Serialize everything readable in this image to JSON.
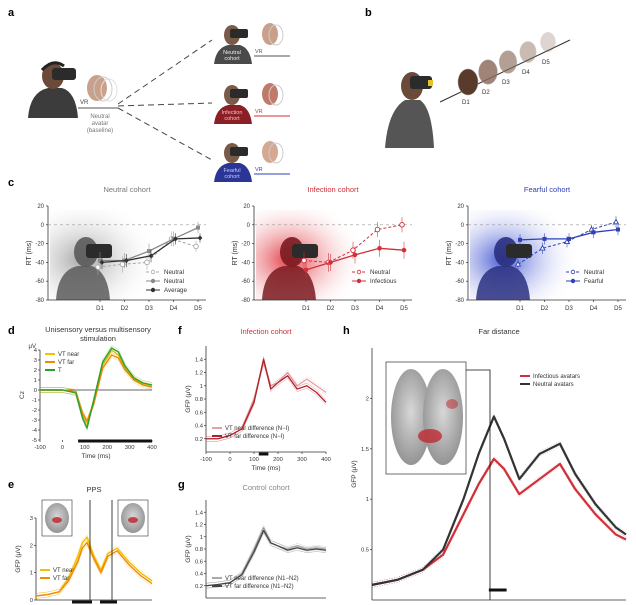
{
  "panels": {
    "a": {
      "letter": "a",
      "vr_main": "VR",
      "baseline_text": [
        "Neutral",
        "avatar",
        "(baseline)"
      ],
      "cohorts": [
        {
          "label": [
            "Neutral",
            "cohort"
          ],
          "vr": "VR",
          "color": "#555555",
          "shirt": "#4a4a4a"
        },
        {
          "label": [
            "Infection",
            "cohort"
          ],
          "vr": "VR",
          "color": "#d0303a",
          "shirt": "#8b1f25"
        },
        {
          "label": [
            "Fearful",
            "cohort"
          ],
          "vr": "VR",
          "color": "#2f3fb8",
          "shirt": "#2a3596"
        }
      ]
    },
    "b": {
      "letter": "b",
      "distances": [
        "D1",
        "D2",
        "D3",
        "D4",
        "D5"
      ]
    },
    "c": {
      "letter": "c"
    },
    "d": {
      "letter": "d"
    },
    "e": {
      "letter": "e"
    },
    "f": {
      "letter": "f"
    },
    "g": {
      "letter": "g"
    },
    "h": {
      "letter": "h"
    }
  },
  "chart_data": [
    {
      "id": "c1",
      "type": "line",
      "title": "Neutral cohort",
      "title_color": "#777777",
      "ylabel": "RT (ms)",
      "ylim": [
        -80,
        20
      ],
      "yticks": [
        20,
        0,
        -20,
        -40,
        -60,
        -80
      ],
      "categories": [
        "D1",
        "D2",
        "D3",
        "D4",
        "D5"
      ],
      "legend": "bottom-right",
      "series": [
        {
          "name": "Neutral",
          "color": "#aaaaaa",
          "marker": "open-circle",
          "dashed": true,
          "values": [
            -45,
            -42,
            -40,
            -15,
            -23
          ],
          "err": [
            8,
            9,
            8,
            8,
            6
          ]
        },
        {
          "name": "Neutral",
          "color": "#8a8a8a",
          "marker": "square",
          "dashed": false,
          "values": [
            -38,
            -38,
            -28,
            -15,
            -3
          ],
          "err": [
            9,
            8,
            8,
            8,
            6
          ]
        },
        {
          "name": "Average",
          "color": "#333333",
          "marker": "diamond",
          "dashed": false,
          "values": [
            -40,
            -38,
            -33,
            -15,
            -14
          ],
          "err": [
            7,
            7,
            7,
            6,
            5
          ]
        }
      ]
    },
    {
      "id": "c2",
      "type": "line",
      "title": "Infection cohort",
      "title_color": "#d0303a",
      "ylabel": "RT (ms)",
      "ylim": [
        -80,
        20
      ],
      "yticks": [
        20,
        0,
        -20,
        -40,
        -60,
        -80
      ],
      "categories": [
        "D1",
        "D2",
        "D3",
        "D4",
        "D5"
      ],
      "legend": "bottom-right",
      "series": [
        {
          "name": "Neutral",
          "color": "#d0303a",
          "marker": "open-circle",
          "dashed": true,
          "values": [
            -38,
            -40,
            -27,
            -5,
            0
          ],
          "err": [
            9,
            10,
            9,
            8,
            8
          ]
        },
        {
          "name": "Infectious",
          "color": "#d0303a",
          "marker": "filled-circle",
          "dashed": false,
          "values": [
            -48,
            -40,
            -32,
            -25,
            -27
          ],
          "err": [
            9,
            9,
            9,
            9,
            9
          ]
        }
      ]
    },
    {
      "id": "c3",
      "type": "line",
      "title": "Fearful cohort",
      "title_color": "#2f3fb8",
      "ylabel": "RT (ms)",
      "ylim": [
        -80,
        20
      ],
      "yticks": [
        20,
        0,
        -20,
        -40,
        -60,
        -80
      ],
      "categories": [
        "D1",
        "D2",
        "D3",
        "D4",
        "D5"
      ],
      "legend": "bottom-right",
      "series": [
        {
          "name": "Neutral",
          "color": "#2f3fb8",
          "marker": "open-triangle",
          "dashed": true,
          "values": [
            -42,
            -25,
            -18,
            -5,
            3
          ],
          "err": [
            6,
            6,
            6,
            5,
            6
          ]
        },
        {
          "name": "Fearful",
          "color": "#2f3fb8",
          "marker": "filled-square",
          "dashed": false,
          "values": [
            -16,
            -15,
            -15,
            -8,
            -5
          ],
          "err": [
            6,
            6,
            6,
            6,
            6
          ]
        }
      ]
    },
    {
      "id": "d",
      "type": "line",
      "title": "Unisensory versus multisensory stimulation",
      "ylabel": "Cz",
      "yunit": "μV",
      "xlabel": "Time (ms)",
      "xlim": [
        -100,
        400
      ],
      "ylim": [
        -5,
        4
      ],
      "xticks": [
        -100,
        0,
        100,
        200,
        300,
        400
      ],
      "yticks": [
        4,
        3,
        2,
        1,
        0,
        -1,
        -2,
        -3,
        -4,
        -5
      ],
      "legend": "top-left",
      "sig_bar": [
        70,
        400
      ],
      "series": [
        {
          "name": "VT near",
          "color": "#f2c200",
          "x": [
            -100,
            0,
            60,
            90,
            110,
            140,
            180,
            220,
            250,
            280,
            320,
            360,
            400
          ],
          "values": [
            0,
            0,
            -0.2,
            -2.5,
            -3.3,
            -1.2,
            2.5,
            4.0,
            3.5,
            2.2,
            1.1,
            0.6,
            0.4
          ]
        },
        {
          "name": "VT far",
          "color": "#f08a00",
          "x": [
            -100,
            0,
            60,
            90,
            110,
            140,
            180,
            220,
            250,
            280,
            320,
            360,
            400
          ],
          "values": [
            0,
            0,
            -0.2,
            -2.3,
            -3.1,
            -1.4,
            2.2,
            3.5,
            3.2,
            2.0,
            1.0,
            0.5,
            0.3
          ]
        },
        {
          "name": "T",
          "color": "#2ca02c",
          "x": [
            -100,
            0,
            60,
            90,
            110,
            140,
            180,
            220,
            250,
            280,
            320,
            360,
            400
          ],
          "values": [
            0,
            0,
            -0.3,
            -2.8,
            -3.8,
            -1.0,
            2.8,
            4.2,
            3.8,
            2.4,
            1.2,
            0.7,
            0.5
          ]
        }
      ]
    },
    {
      "id": "e",
      "type": "line",
      "title": "PPS",
      "ylabel": "GFP (μV)",
      "xlim": [
        -100,
        400
      ],
      "ylim": [
        0,
        3
      ],
      "yticks": [
        0,
        1.0,
        2.0,
        3.0
      ],
      "legend": "bottom-left",
      "series": [
        {
          "name": "VT near",
          "color": "#f2c200",
          "x": [
            -100,
            -50,
            0,
            40,
            80,
            100,
            120,
            150,
            180,
            210,
            250,
            300,
            350,
            400
          ],
          "values": [
            0.15,
            0.2,
            0.3,
            0.8,
            1.6,
            2.1,
            2.3,
            1.6,
            1.1,
            1.7,
            1.9,
            1.4,
            1.0,
            0.7
          ]
        },
        {
          "name": "VT far",
          "color": "#f08a00",
          "x": [
            -100,
            -50,
            0,
            40,
            80,
            100,
            120,
            150,
            180,
            210,
            250,
            300,
            350,
            400
          ],
          "values": [
            0.15,
            0.2,
            0.3,
            0.7,
            1.4,
            1.9,
            2.1,
            1.5,
            1.0,
            1.6,
            1.8,
            1.3,
            0.9,
            0.6
          ]
        }
      ]
    },
    {
      "id": "f",
      "type": "line",
      "title": "Infection cohort",
      "title_color": "#d0303a",
      "ylabel": "GFP (μV)",
      "xlabel": "Time (ms)",
      "xlim": [
        -100,
        400
      ],
      "ylim": [
        0,
        1.6
      ],
      "xticks": [
        -100,
        0,
        100,
        200,
        300,
        400
      ],
      "yticks": [
        0.2,
        0.4,
        0.6,
        0.8,
        1.0,
        1.2,
        1.4
      ],
      "legend": "bottom-left",
      "sig_bar": [
        120,
        160
      ],
      "series": [
        {
          "name": "VT near difference (N−I)",
          "color": "#e8a0a8",
          "x": [
            -100,
            -50,
            0,
            50,
            100,
            140,
            170,
            200,
            240,
            280,
            320,
            360,
            400
          ],
          "values": [
            0.2,
            0.2,
            0.25,
            0.35,
            0.8,
            1.35,
            1.0,
            1.05,
            1.2,
            1.0,
            1.1,
            1.0,
            0.9
          ]
        },
        {
          "name": "VT far difference (N−I)",
          "color": "#b0222a",
          "x": [
            -100,
            -50,
            0,
            50,
            100,
            140,
            170,
            200,
            240,
            280,
            320,
            360,
            400
          ],
          "values": [
            0.2,
            0.2,
            0.25,
            0.35,
            0.75,
            1.4,
            0.95,
            1.05,
            1.15,
            0.95,
            1.0,
            0.9,
            0.75
          ]
        }
      ]
    },
    {
      "id": "g",
      "type": "line",
      "title": "Control cohort",
      "title_color": "#888888",
      "ylabel": "GFP (μV)",
      "xlim": [
        -100,
        400
      ],
      "ylim": [
        0,
        1.6
      ],
      "yticks": [
        0.2,
        0.4,
        0.6,
        0.8,
        1.0,
        1.2,
        1.4
      ],
      "legend": "bottom-left",
      "series": [
        {
          "name": "VT near difference (N1−N2)",
          "color": "#aaaaaa",
          "x": [
            -100,
            -50,
            0,
            50,
            100,
            140,
            170,
            200,
            240,
            280,
            320,
            360,
            400
          ],
          "values": [
            0.2,
            0.22,
            0.25,
            0.4,
            0.8,
            1.15,
            0.9,
            0.85,
            0.8,
            0.85,
            0.8,
            0.82,
            0.8
          ]
        },
        {
          "name": "VT far difference (N1−N2)",
          "color": "#444444",
          "x": [
            -100,
            -50,
            0,
            50,
            100,
            140,
            170,
            200,
            240,
            280,
            320,
            360,
            400
          ],
          "values": [
            0.2,
            0.22,
            0.25,
            0.38,
            0.75,
            1.1,
            0.9,
            0.85,
            0.78,
            0.82,
            0.78,
            0.8,
            0.78
          ]
        }
      ]
    },
    {
      "id": "h",
      "type": "line",
      "title": "Far distance",
      "ylabel": "GFP (μV)",
      "xlim": [
        -100,
        400
      ],
      "ylim": [
        0,
        2.5
      ],
      "yticks": [
        0.5,
        1.0,
        1.5,
        2.0
      ],
      "legend": "top-right",
      "sig_bar": [
        130,
        165
      ],
      "series": [
        {
          "name": "Infectious avatars",
          "color": "#d0303a",
          "x": [
            -100,
            -50,
            0,
            40,
            80,
            110,
            140,
            160,
            190,
            230,
            270,
            300,
            340,
            380,
            400
          ],
          "values": [
            0.15,
            0.2,
            0.3,
            0.45,
            0.85,
            1.15,
            1.4,
            1.3,
            1.05,
            1.2,
            1.35,
            1.1,
            0.85,
            0.65,
            0.6
          ]
        },
        {
          "name": "Neutral avatars",
          "color": "#333333",
          "x": [
            -100,
            -50,
            0,
            40,
            80,
            110,
            140,
            160,
            190,
            230,
            270,
            300,
            340,
            380,
            400
          ],
          "values": [
            0.15,
            0.2,
            0.3,
            0.5,
            1.0,
            1.45,
            1.82,
            1.6,
            1.2,
            1.45,
            1.55,
            1.25,
            0.95,
            0.72,
            0.65
          ]
        }
      ]
    }
  ]
}
